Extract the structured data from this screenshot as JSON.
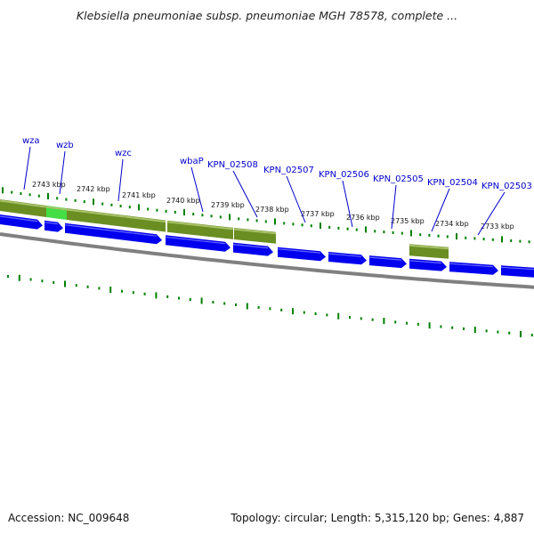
{
  "title": "Klebsiella pneumoniae subsp. pneumoniae MGH 78578, complete ...",
  "accession_text": "Accession: NC_009648",
  "topology_text": "Topology: circular; Length: 5,315,120 bp; Genes: 4,887",
  "kbp_labels": [
    "2743 kbp",
    "2742 kbp",
    "2741 kbp",
    "2740 kbp",
    "2739 kbp",
    "2738 kbp",
    "2737 kbp",
    "2736 kbp",
    "2735 kbp",
    "2734 kbp",
    "2733 kbp"
  ],
  "genes": [
    "wza",
    "wzb",
    "wzc",
    "wbaP",
    "KPN_02508",
    "KPN_02507",
    "KPN_02506",
    "KPN_02505",
    "KPN_02504",
    "KPN_02503"
  ],
  "colors": {
    "cds": "#0000ee",
    "feature_olive": "#6b8e23",
    "feature_highlight": "#44dd44",
    "tick": "#008000",
    "backbone": "#808080",
    "gene_label": "#0000cc"
  }
}
